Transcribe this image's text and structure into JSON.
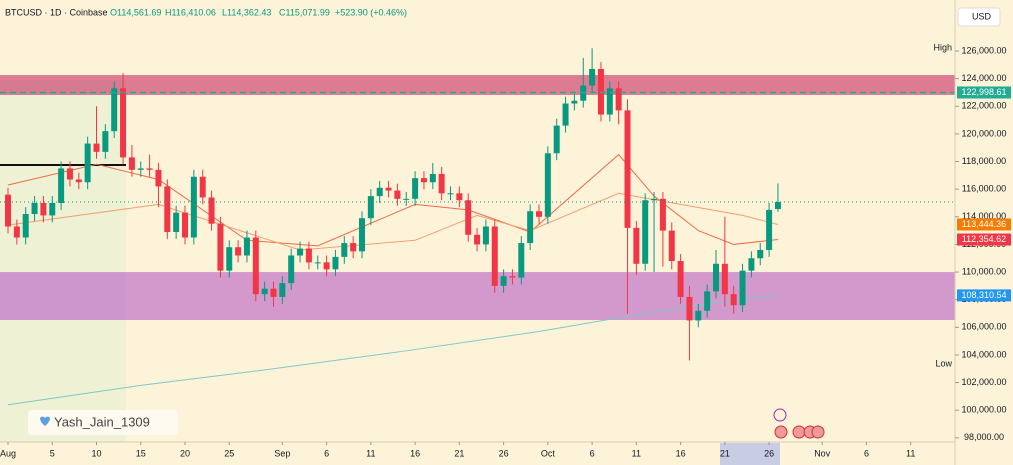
{
  "header": {
    "symbol": "BTCUSD · 1D · Coinbase",
    "ohlc": [
      "O114,561.69",
      "H116,410.06",
      "L114,362.43",
      "C115,071.99"
    ],
    "change": "+523.90 (+0.46%)",
    "currency": "USD"
  },
  "watermark": "Yash_Jain_1309",
  "chart_data": {
    "type": "candlestick",
    "up_color": "#089981",
    "down_color": "#f23645",
    "open": [
      115600,
      113300,
      112500,
      114200,
      115000,
      114100,
      115000,
      117500,
      116700,
      116500,
      119300,
      118700,
      120200,
      123300,
      118300,
      117400,
      117500,
      117400,
      116200,
      112900,
      114300,
      112500,
      116900,
      115400,
      113500,
      110100,
      111800,
      111200,
      112500,
      108400,
      108800,
      108200,
      109200,
      111200,
      111700,
      110700,
      110700,
      110200,
      111100,
      112100,
      111500,
      113900,
      115500,
      116100,
      115900,
      115300,
      115300,
      116800,
      116500,
      117100,
      115700,
      115700,
      115200,
      112700,
      112000,
      113300,
      109000,
      109700,
      109600,
      112100,
      114400,
      114000,
      118600,
      120600,
      122200,
      122400,
      123500,
      124700,
      121400,
      123300,
      121700,
      113200,
      110600,
      115200,
      115300,
      113000,
      110800,
      108200,
      106500,
      107200,
      108600,
      110600,
      108400,
      107600,
      110100,
      111000,
      111600,
      114561.69
    ],
    "high": [
      116100,
      113800,
      114700,
      115500,
      115500,
      115500,
      118000,
      118000,
      117200,
      119800,
      122000,
      120700,
      123800,
      124400,
      119200,
      118000,
      118500,
      117900,
      116700,
      114800,
      114800,
      117400,
      117400,
      115900,
      114000,
      112300,
      112300,
      113000,
      113000,
      109300,
      109300,
      109700,
      111700,
      112200,
      112200,
      111200,
      111200,
      111600,
      112600,
      112600,
      114400,
      116000,
      116600,
      116600,
      116400,
      115800,
      117300,
      117300,
      117900,
      117600,
      116200,
      116200,
      115700,
      113200,
      113800,
      113800,
      110200,
      110200,
      112600,
      114900,
      114900,
      119100,
      121100,
      122700,
      122900,
      125500,
      126200,
      125200,
      123800,
      123800,
      122500,
      113700,
      115700,
      115800,
      115800,
      113600,
      111300,
      109000,
      107700,
      109100,
      111600,
      114000,
      109000,
      110600,
      111500,
      112100,
      115000,
      116410.06
    ],
    "low": [
      112800,
      112000,
      112000,
      113700,
      113600,
      113600,
      114500,
      116200,
      116000,
      116000,
      118200,
      118200,
      119700,
      117800,
      116900,
      116900,
      116900,
      114700,
      112400,
      112400,
      112000,
      112000,
      114900,
      113000,
      109600,
      109600,
      110700,
      110700,
      107900,
      107900,
      107500,
      107700,
      108700,
      110700,
      110200,
      110200,
      109700,
      109700,
      110600,
      111000,
      111000,
      113400,
      115000,
      115400,
      114800,
      114800,
      114800,
      116000,
      116000,
      115200,
      115200,
      114700,
      112200,
      111500,
      111500,
      108500,
      108500,
      109100,
      109100,
      111600,
      113500,
      113500,
      118100,
      120100,
      121700,
      121900,
      123000,
      120900,
      120900,
      120700,
      107000,
      109800,
      110100,
      110000,
      110400,
      110200,
      107700,
      103600,
      106000,
      106700,
      108100,
      107500,
      107000,
      107100,
      109600,
      110500,
      111100,
      114362.43
    ],
    "close": [
      113300,
      112500,
      114200,
      115000,
      114100,
      115000,
      117500,
      116700,
      116500,
      119300,
      118700,
      120200,
      123300,
      118300,
      117400,
      117500,
      117400,
      116200,
      112900,
      114300,
      112500,
      116900,
      115400,
      113500,
      110100,
      111800,
      111200,
      112500,
      108400,
      108800,
      108200,
      109200,
      111200,
      111700,
      110700,
      110700,
      110200,
      111100,
      112100,
      111500,
      113900,
      115500,
      116100,
      115900,
      115300,
      115300,
      116800,
      116500,
      117100,
      115700,
      115700,
      115200,
      112700,
      112000,
      113300,
      109000,
      109700,
      109600,
      112100,
      114400,
      114000,
      118600,
      120600,
      122200,
      122400,
      123500,
      124700,
      121400,
      123300,
      121700,
      113200,
      110600,
      115200,
      115300,
      113000,
      110800,
      108200,
      106500,
      107200,
      108600,
      110600,
      108400,
      107600,
      110100,
      111000,
      111600,
      114500,
      115071.99
    ],
    "xlim": [
      -1,
      112
    ],
    "xticks": [
      {
        "value": 0,
        "label": "Aug"
      },
      5,
      10,
      15,
      20,
      25,
      {
        "value": 31,
        "label": "Sep"
      },
      {
        "value": 36,
        "label": "6"
      },
      {
        "value": 41,
        "label": "11"
      },
      {
        "value": 46,
        "label": "16"
      },
      {
        "value": 51,
        "label": "21"
      },
      {
        "value": 56,
        "label": "26"
      },
      {
        "value": 61,
        "label": "Oct"
      },
      {
        "value": 66,
        "label": "6"
      },
      {
        "value": 71,
        "label": "11"
      },
      {
        "value": 76,
        "label": "16"
      },
      {
        "value": 81,
        "label": "21"
      },
      {
        "value": 86,
        "label": "26"
      },
      {
        "value": 92,
        "label": "Nov"
      },
      {
        "value": 97,
        "label": "6"
      },
      {
        "value": 102,
        "label": "11"
      }
    ],
    "ylim": [
      97700,
      129330
    ],
    "yticks": [
      {
        "value": 98000,
        "label": "98,000.00"
      },
      {
        "value": 100000,
        "label": "100,000.00"
      },
      {
        "value": 102000,
        "label": "102,000.00"
      },
      {
        "value": 104000,
        "label": "104,000.00"
      },
      {
        "value": 106000,
        "label": "106,000.00"
      },
      {
        "value": 108000,
        "label": "108,000.00"
      },
      {
        "value": 110000,
        "label": "110,000.00"
      },
      {
        "value": 112000,
        "label": "112,000.00"
      },
      {
        "value": 114000,
        "label": "114,000.00"
      },
      {
        "value": 116000,
        "label": "116,000.00"
      },
      {
        "value": 118000,
        "label": "118,000.00"
      },
      {
        "value": 120000,
        "label": "120,000.00"
      },
      {
        "value": 122000,
        "label": "122,000.00"
      },
      {
        "value": 124000,
        "label": "124,000.00"
      },
      {
        "value": 126000,
        "label": "126,000.00"
      }
    ],
    "lines": [
      {
        "color": "#f06b4a",
        "x": [
          0,
          10,
          17,
          27,
          35,
          46,
          52,
          59,
          69,
          73,
          78,
          82,
          87
        ],
        "values": [
          116300,
          117800,
          116700,
          112300,
          111900,
          114900,
          114500,
          112900,
          118500,
          115500,
          113000,
          112000,
          112354.62
        ]
      },
      {
        "color": "#f5a070",
        "x": [
          0,
          17,
          33,
          46,
          53,
          59,
          69,
          76,
          83,
          87
        ],
        "values": [
          113400,
          114900,
          111600,
          112300,
          114100,
          113000,
          115700,
          114900,
          114100,
          113444.36
        ]
      },
      {
        "color": "#7fc7c8",
        "x": [
          0,
          15,
          30,
          45,
          60,
          70,
          80,
          87
        ],
        "values": [
          100400,
          101800,
          103000,
          104300,
          105700,
          106800,
          107800,
          108310.54
        ]
      }
    ],
    "zones": [
      {
        "from": 122820,
        "to": 124260,
        "color": "#c2185b"
      },
      {
        "from": 106530,
        "to": 110000,
        "color": "#b14fc5"
      }
    ],
    "level_line": 117750,
    "price_labels": [
      {
        "value": 122998.61,
        "label": "122,998.61",
        "color": "#22ab94"
      },
      {
        "value": 113444.36,
        "label": "113,444.36",
        "color": "#f57c00"
      },
      {
        "value": 112354.62,
        "label": "112,354.62",
        "color": "#f23645"
      },
      {
        "value": 108310.54,
        "label": "108,310.54",
        "color": "#2196f3"
      }
    ],
    "high_label": "High",
    "low_label": "Low"
  }
}
